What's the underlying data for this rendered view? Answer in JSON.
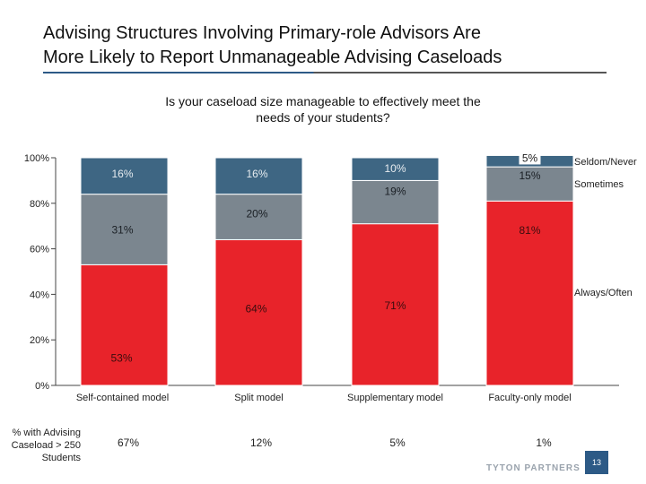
{
  "slide": {
    "title_line1": "Advising Structures Involving Primary-role Advisors Are",
    "title_line2": "More Likely to Report Unmanageable Advising Caseloads",
    "question_line1": "Is your caseload size manageable to effectively meet the",
    "question_line2": "needs of your students?",
    "footer_label_line1": "% with Advising",
    "footer_label_line2": "Caseload > 250",
    "footer_label_line3": "Students",
    "footer_values": [
      "67%",
      "12%",
      "5%",
      "1%"
    ],
    "brand": "TYTON PARTNERS",
    "page_number": "13"
  },
  "colors": {
    "always": "#e8232a",
    "sometimes": "#7b868f",
    "seldom": "#3e6683",
    "axis": "#444444"
  },
  "chart_data": {
    "type": "bar",
    "stacked": true,
    "categories": [
      "Self-contained model",
      "Split model",
      "Supplementary model",
      "Faculty-only model"
    ],
    "series": [
      {
        "name": "Always/Often",
        "values": [
          53,
          64,
          71,
          81
        ],
        "labels": [
          "53%",
          "64%",
          "71%",
          "81%"
        ]
      },
      {
        "name": "Sometimes",
        "values": [
          31,
          20,
          19,
          15
        ],
        "labels": [
          "31%",
          "20%",
          "19%",
          "15%"
        ]
      },
      {
        "name": "Seldom/Never",
        "values": [
          16,
          16,
          10,
          5
        ],
        "labels": [
          "16%",
          "16%",
          "10%",
          "5%"
        ]
      }
    ],
    "yticks": [
      "0%",
      "20%",
      "40%",
      "60%",
      "80%",
      "100%"
    ],
    "ylim": [
      0,
      100
    ],
    "legend_position": "right"
  }
}
